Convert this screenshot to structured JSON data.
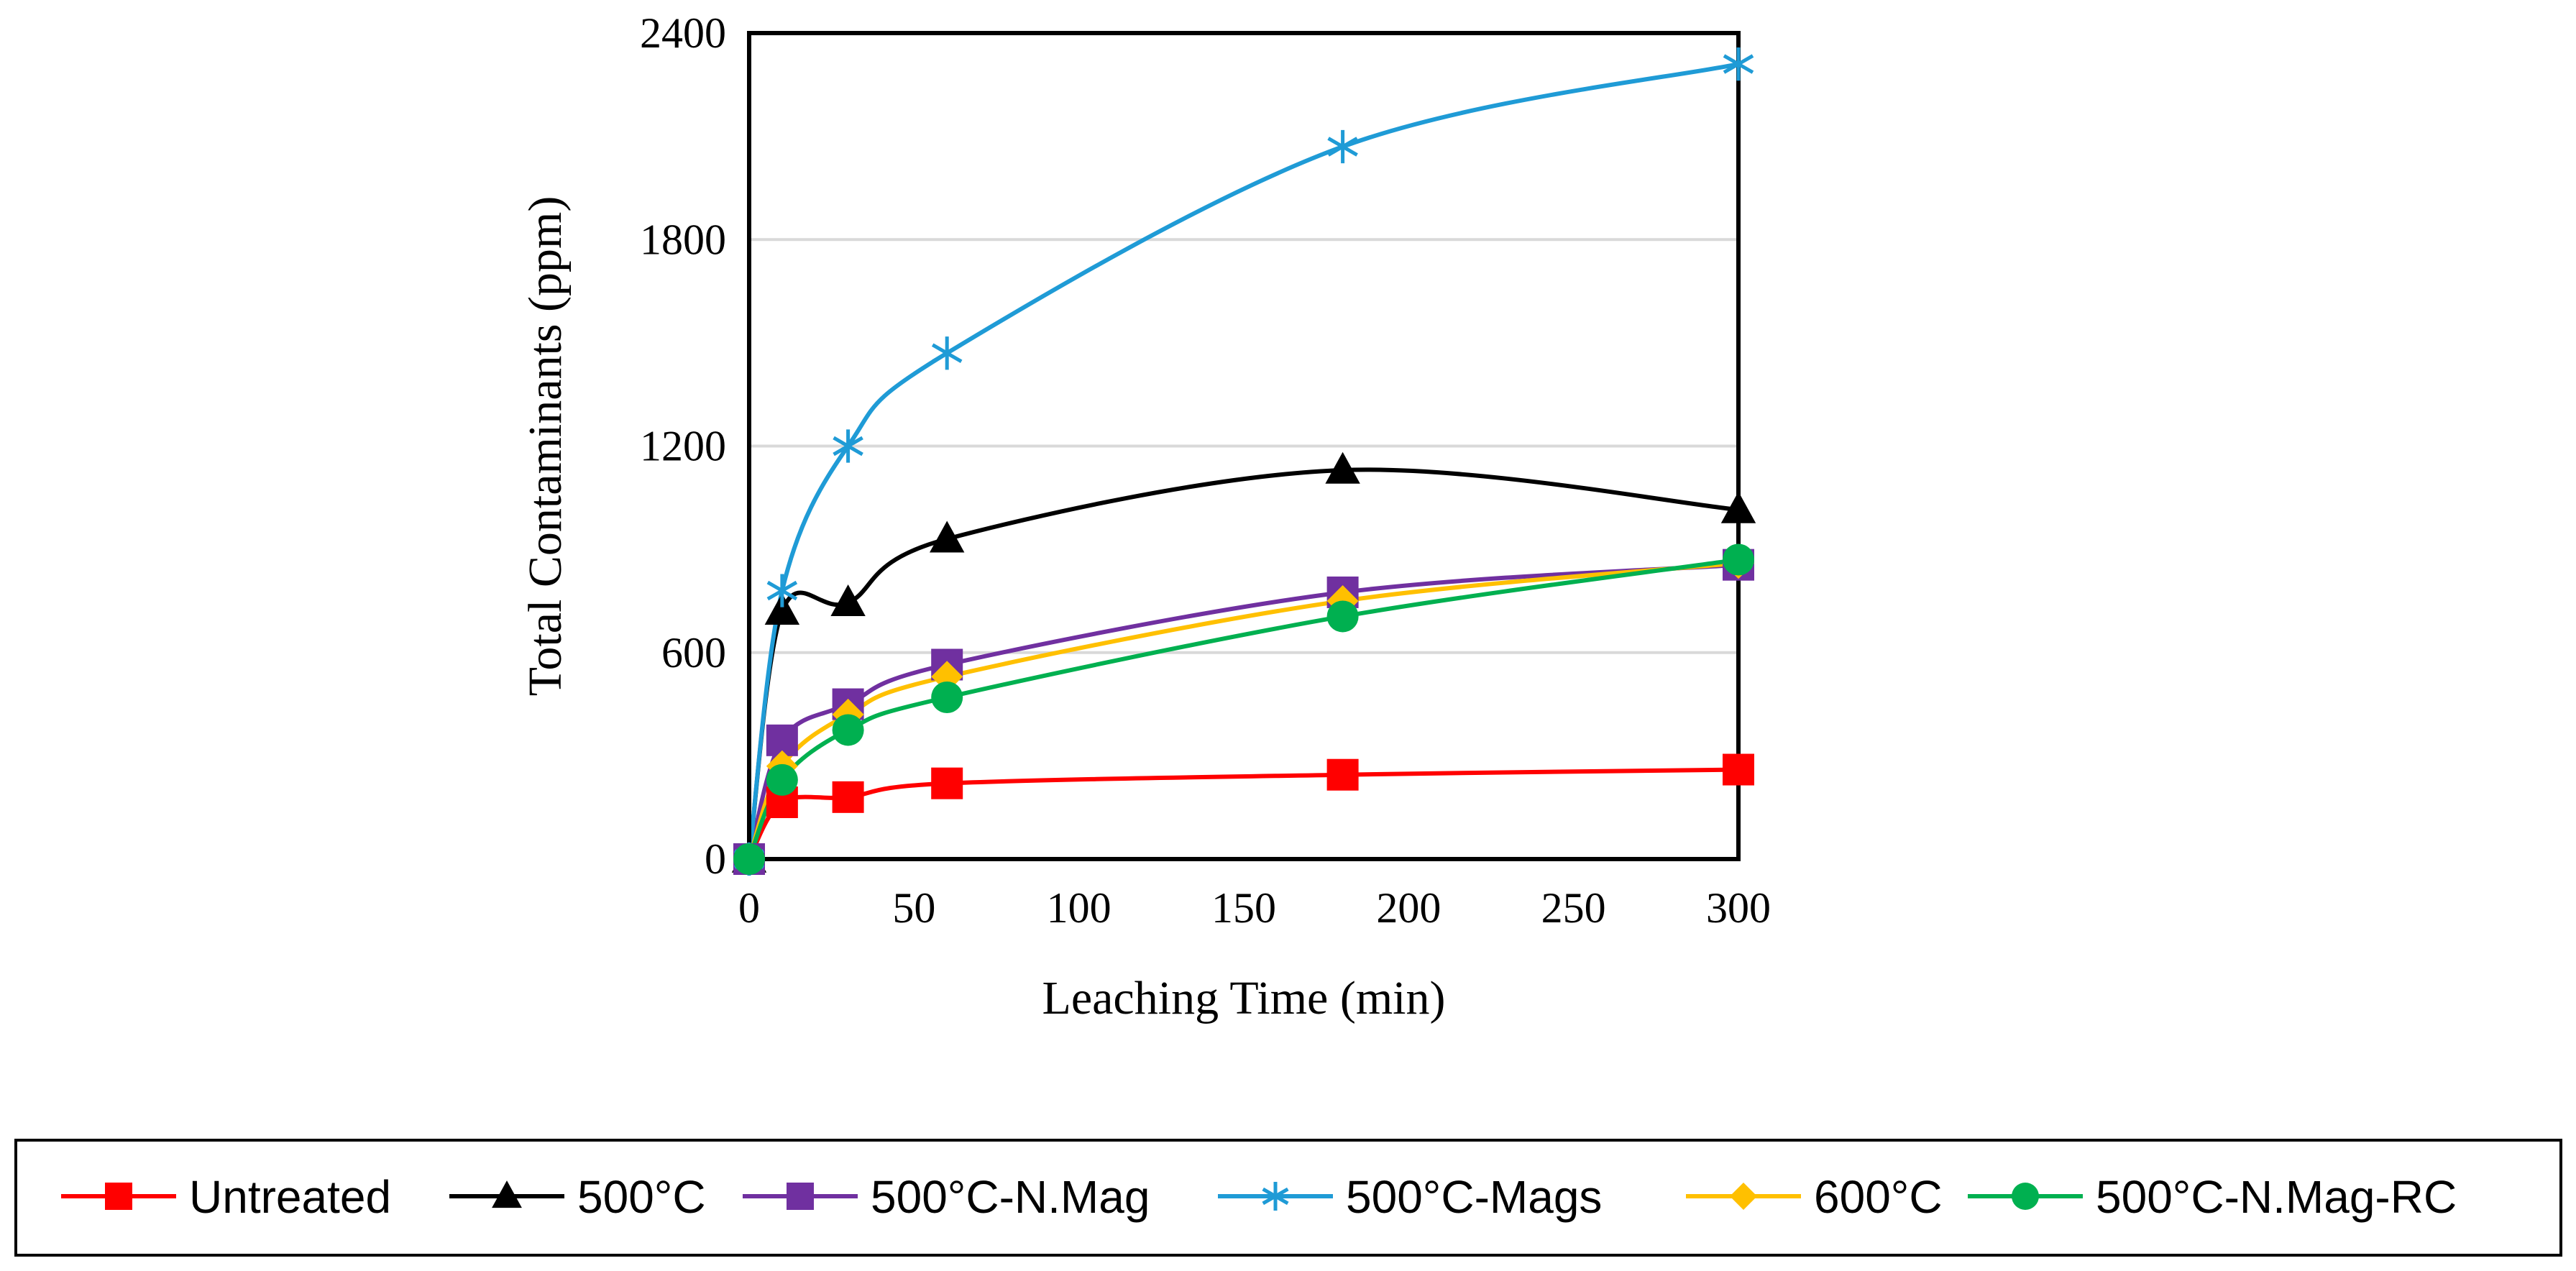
{
  "chart_data": {
    "type": "line",
    "title": "",
    "xlabel": "Leaching Time (min)",
    "ylabel": "Total Contaminants (ppm)",
    "xlim": [
      0,
      300
    ],
    "ylim": [
      0,
      2400
    ],
    "xticks": [
      0,
      50,
      100,
      150,
      200,
      250,
      300
    ],
    "yticks": [
      0,
      600,
      1200,
      1800,
      2400
    ],
    "xtick_labels": [
      "0",
      "50",
      "100",
      "150",
      "200",
      "250",
      "300"
    ],
    "ytick_labels": [
      "0",
      "600",
      "1200",
      "1800",
      "2400"
    ],
    "grid": "horizontal",
    "legend_position": "bottom",
    "x": [
      0,
      10,
      30,
      60,
      180,
      300
    ],
    "series": [
      {
        "name": "Untreated",
        "color": "#ff0000",
        "marker": "square",
        "values": [
          0,
          165,
          180,
          220,
          245,
          260
        ]
      },
      {
        "name": "500°C",
        "color": "#000000",
        "marker": "triangle",
        "values": [
          0,
          720,
          745,
          930,
          1130,
          1015
        ]
      },
      {
        "name": "500°C-N.Mag",
        "color": "#7030a0",
        "marker": "square",
        "values": [
          0,
          345,
          450,
          565,
          775,
          855
        ]
      },
      {
        "name": "500°C-Mags",
        "color": "#1f9bd6",
        "marker": "star",
        "values": [
          0,
          780,
          1200,
          1470,
          2070,
          2310
        ]
      },
      {
        "name": "600°C",
        "color": "#ffc000",
        "marker": "diamond",
        "values": [
          0,
          270,
          420,
          530,
          750,
          860
        ]
      },
      {
        "name": "500°C-N.Mag-RC",
        "color": "#00b050",
        "marker": "circle",
        "values": [
          0,
          230,
          375,
          470,
          705,
          870
        ]
      }
    ]
  }
}
